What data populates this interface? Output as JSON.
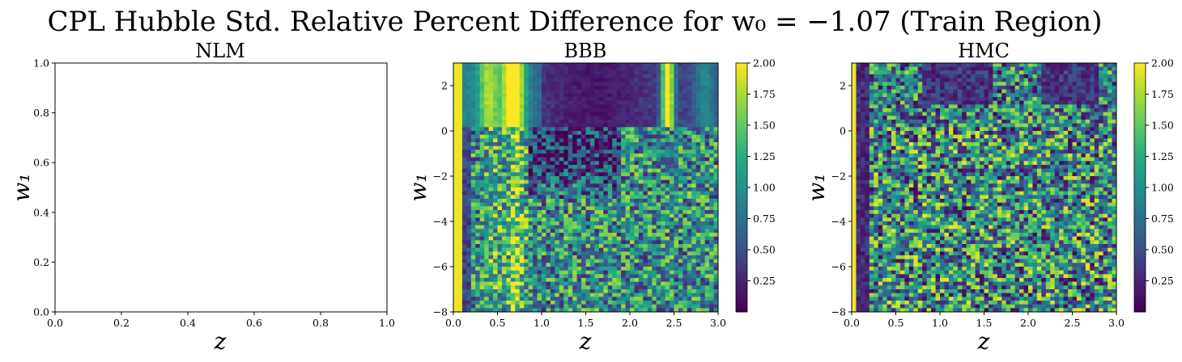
{
  "figure": {
    "title": "CPL Hubble Std. Relative Percent Difference for w₀ = −1.07 (Train Region)"
  },
  "chart_data": [
    {
      "type": "heatmap",
      "title": "NLM",
      "xlabel": "z",
      "ylabel": "w₁",
      "xlim": [
        0,
        1
      ],
      "ylim": [
        0,
        1
      ],
      "xticks": [
        "0.0",
        "0.2",
        "0.4",
        "0.6",
        "0.8",
        "1.0"
      ],
      "yticks": [
        "0.0",
        "0.2",
        "0.4",
        "0.6",
        "0.8",
        "1.0"
      ],
      "empty": true
    },
    {
      "type": "heatmap",
      "title": "BBB",
      "xlabel": "z",
      "ylabel": "w₁",
      "xlim": [
        0,
        3
      ],
      "ylim": [
        -8,
        3
      ],
      "xticks": [
        "0.0",
        "0.5",
        "1.0",
        "1.5",
        "2.0",
        "2.5",
        "3.0"
      ],
      "yticks": [
        "−8",
        "−6",
        "−4",
        "−2",
        "0",
        "2"
      ],
      "colorbar": {
        "min": 0,
        "max": 2,
        "ticks": [
          "0.25",
          "0.50",
          "0.75",
          "1.00",
          "1.25",
          "1.50",
          "1.75",
          "2.00"
        ]
      },
      "grid": {
        "nx": 60,
        "ny": 66
      },
      "colormap": "viridis"
    },
    {
      "type": "heatmap",
      "title": "HMC",
      "xlabel": "z",
      "ylabel": "w₁",
      "xlim": [
        0,
        3
      ],
      "ylim": [
        -8,
        3
      ],
      "xticks": [
        "0.0",
        "0.5",
        "1.0",
        "1.5",
        "2.0",
        "2.5",
        "3.0"
      ],
      "yticks": [
        "−8",
        "−6",
        "−4",
        "−2",
        "0",
        "2"
      ],
      "colorbar": {
        "min": 0,
        "max": 2,
        "ticks": [
          "0.25",
          "0.50",
          "0.75",
          "1.00",
          "1.25",
          "1.50",
          "1.75",
          "2.00"
        ]
      },
      "grid": {
        "nx": 60,
        "ny": 66
      },
      "colormap": "viridis"
    }
  ]
}
